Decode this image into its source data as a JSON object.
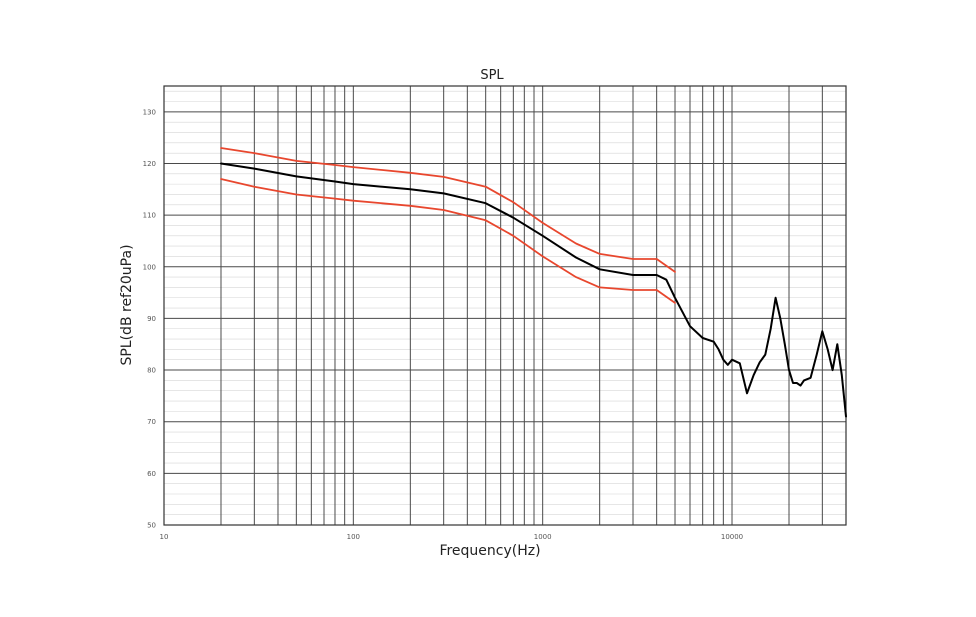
{
  "chart_data": {
    "type": "line",
    "title": "SPL",
    "xlabel": "Frequency(Hz)",
    "ylabel": "SPL(dB ref20uPa)",
    "xscale": "log",
    "xlim": [
      10,
      40000
    ],
    "ylim": [
      50,
      135
    ],
    "xticks": [
      10,
      100,
      1000,
      10000
    ],
    "xtick_labels": [
      "10",
      "100",
      "1000",
      "10000"
    ],
    "yticks": [
      50,
      60,
      70,
      80,
      90,
      100,
      110,
      120,
      130
    ],
    "ytick_labels": [
      "50",
      "60",
      "70",
      "80",
      "90",
      "100",
      "110",
      "120",
      "130"
    ],
    "grid": true,
    "series": [
      {
        "color": "#e8472e",
        "x": [
          20,
          30,
          50,
          80,
          100,
          200,
          300,
          500,
          700,
          1000,
          1500,
          2000,
          3000,
          4000,
          5000
        ],
        "y": [
          123,
          122,
          120.5,
          119.7,
          119.3,
          118.2,
          117.4,
          115.5,
          112.5,
          108.5,
          104.5,
          102.5,
          101.5,
          101.5,
          99
        ]
      },
      {
        "color": "#000000",
        "x": [
          20,
          30,
          50,
          80,
          100,
          200,
          300,
          500,
          700,
          1000,
          1500,
          2000,
          3000,
          4000,
          4500,
          5000,
          6000,
          7000,
          8000,
          8500,
          9000,
          9500,
          10000,
          11000,
          12000,
          13000,
          14000,
          15000,
          16000,
          17000,
          18000,
          19000,
          20000,
          21000,
          22000,
          23000,
          24000,
          26000,
          28000,
          30000,
          32000,
          34000,
          36000,
          38000,
          40000
        ],
        "y": [
          120,
          119,
          117.5,
          116.5,
          116,
          115,
          114.2,
          112.3,
          109.5,
          106,
          101.8,
          99.5,
          98.4,
          98.4,
          97.5,
          94,
          88.5,
          86.2,
          85.5,
          84,
          82,
          81,
          82,
          81.3,
          75.5,
          79,
          81.5,
          83,
          88,
          94,
          90,
          85,
          80,
          77.5,
          77.5,
          77,
          78,
          78.5,
          83,
          87.5,
          84,
          80,
          85,
          79,
          71
        ]
      },
      {
        "color": "#e8472e",
        "x": [
          20,
          30,
          50,
          80,
          100,
          200,
          300,
          500,
          700,
          1000,
          1500,
          2000,
          3000,
          4000,
          5000
        ],
        "y": [
          117,
          115.5,
          114,
          113.2,
          112.8,
          111.8,
          111,
          109,
          106,
          102,
          98,
          96,
          95.5,
          95.5,
          93
        ]
      }
    ]
  }
}
